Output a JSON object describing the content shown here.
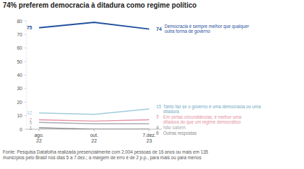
{
  "chart_data": {
    "type": "line",
    "title": "74% preferem democracia à ditadura como regime político",
    "source": "Fonte: Pesquisa Datafolha realizada presencialmente com 2.004 pessoas de 16 anos ou mais em 135 municípios pelo Brasil nos dias 5 a 7.dez.; a margem de erro é de 2 p.p., para mais ou para menos",
    "categories": [
      "ago. 22",
      "out. 22",
      "7.dez. 23"
    ],
    "series": [
      {
        "name": "Democracia é sempre melhor que qualquer outra forma de governo",
        "color": "#1f4f9e",
        "values": [
          75,
          79,
          74
        ]
      },
      {
        "name": "Tanto faz se o governo é uma democracia ou uma ditadura",
        "color": "#9fcbdc",
        "values": [
          12,
          11,
          15
        ]
      },
      {
        "name": "Em certas circunstâncias, é melhor uma ditadura do que um regime democrático",
        "color": "#e390a2",
        "values": [
          7,
          6,
          7
        ]
      },
      {
        "name": "Não sabem",
        "color": "#a9a9b3",
        "values": [
          5,
          4,
          4
        ]
      },
      {
        "name": "Outras respostas",
        "color": "#8a8a8a",
        "values": [
          1,
          0,
          0
        ]
      }
    ],
    "ylim": [
      0,
      80
    ],
    "yticks": [
      0,
      10,
      20,
      30,
      40,
      50,
      60,
      70,
      80
    ],
    "grid": false,
    "data_labels": true
  }
}
